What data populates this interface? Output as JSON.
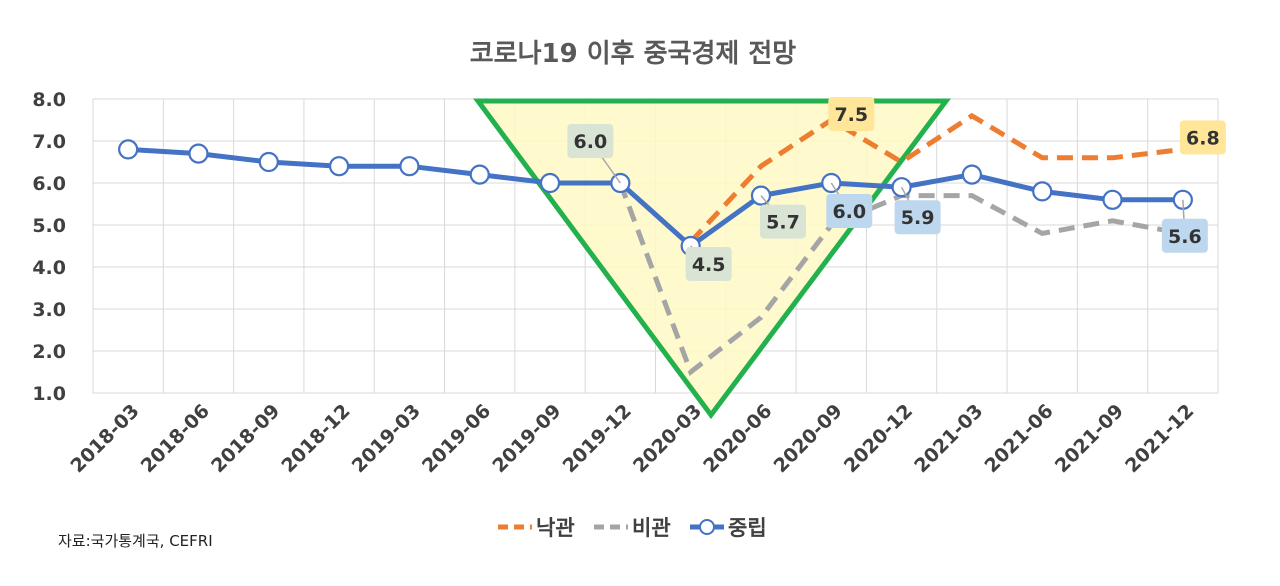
{
  "chart_data": {
    "type": "line",
    "title": "코로나19 이후 중국경제 전망",
    "xlabel": "",
    "ylabel": "",
    "ylim": [
      1.0,
      8.0
    ],
    "yticks": [
      "8.0",
      "7.0",
      "6.0",
      "5.0",
      "4.0",
      "3.0",
      "2.0",
      "1.0"
    ],
    "categories": [
      "2018-03",
      "2018-06",
      "2018-09",
      "2018-12",
      "2019-03",
      "2019-06",
      "2019-09",
      "2019-12",
      "2020-03",
      "2020-06",
      "2020-09",
      "2020-12",
      "2021-03",
      "2021-06",
      "2021-09",
      "2021-12"
    ],
    "series": [
      {
        "name": "낙관",
        "style": "dashed",
        "color": "#ED7D31",
        "values": [
          null,
          null,
          null,
          null,
          null,
          null,
          null,
          null,
          4.6,
          6.4,
          7.5,
          6.5,
          7.6,
          6.6,
          6.6,
          6.8
        ]
      },
      {
        "name": "비관",
        "style": "dashed",
        "color": "#A5A5A5",
        "values": [
          null,
          null,
          null,
          null,
          null,
          null,
          null,
          6.0,
          1.5,
          2.8,
          5.0,
          5.7,
          5.7,
          4.8,
          5.1,
          4.8
        ]
      },
      {
        "name": "중립",
        "style": "solid-marker",
        "color": "#4472C4",
        "values": [
          6.8,
          6.7,
          6.5,
          6.4,
          6.4,
          6.2,
          6.0,
          6.0,
          4.5,
          5.7,
          6.0,
          5.9,
          6.2,
          5.8,
          5.6,
          5.6
        ]
      }
    ],
    "data_labels": [
      {
        "text": "6.0",
        "bg": "#D9E4D5"
      },
      {
        "text": "4.5",
        "bg": "#D9E4D5"
      },
      {
        "text": "5.7",
        "bg": "#D9E4D5"
      },
      {
        "text": "7.5",
        "bg": "#FFE699"
      },
      {
        "text": "6.0",
        "bg": "#BDD7EE"
      },
      {
        "text": "5.9",
        "bg": "#BDD7EE"
      },
      {
        "text": "6.8",
        "bg": "#FFE699"
      },
      {
        "text": "5.6",
        "bg": "#BDD7EE"
      }
    ],
    "legend_position": "bottom",
    "grid": true,
    "highlight_triangle": {
      "fill": "#FFF9C4",
      "stroke": "#22B14C"
    }
  },
  "source_text": "자료:국가통계국, CEFRI"
}
